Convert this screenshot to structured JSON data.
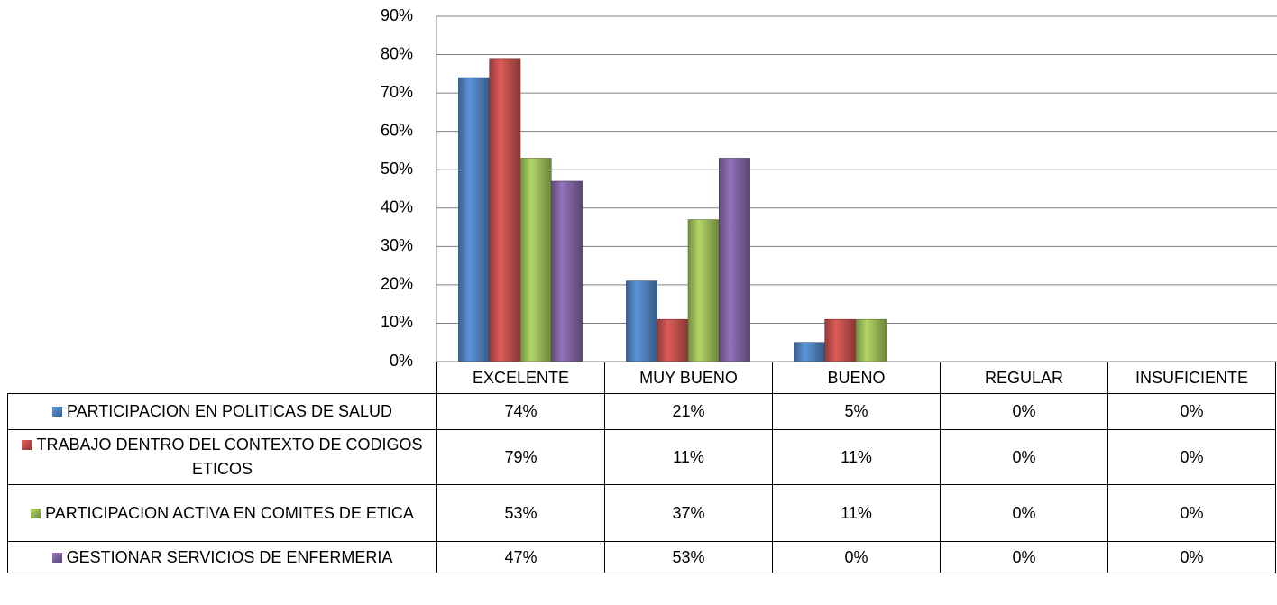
{
  "chart_data": {
    "type": "bar",
    "categories": [
      "EXCELENTE",
      "MUY BUENO",
      "BUENO",
      "REGULAR",
      "INSUFICIENTE"
    ],
    "series": [
      {
        "name": "PARTICIPACION EN POLITICAS DE SALUD",
        "color": "#4f81bd",
        "values": [
          74,
          21,
          5,
          0,
          0
        ],
        "value_labels": [
          "74%",
          "21%",
          "5%",
          "0%",
          "0%"
        ]
      },
      {
        "name": "TRABAJO DENTRO DEL CONTEXTO DE CODIGOS ETICOS",
        "color": "#c0504d",
        "values": [
          79,
          11,
          11,
          0,
          0
        ],
        "value_labels": [
          "79%",
          "11%",
          "11%",
          "0%",
          "0%"
        ]
      },
      {
        "name": "PARTICIPACION ACTIVA EN COMITES DE ETICA",
        "color": "#9bbb59",
        "values": [
          53,
          37,
          11,
          0,
          0
        ],
        "value_labels": [
          "53%",
          "37%",
          "11%",
          "0%",
          "0%"
        ]
      },
      {
        "name": "GESTIONAR SERVICIOS DE ENFERMERIA",
        "color": "#8064a2",
        "values": [
          47,
          53,
          0,
          0,
          0
        ],
        "value_labels": [
          "47%",
          "53%",
          "0%",
          "0%",
          "0%"
        ]
      }
    ],
    "ylim": [
      0,
      90
    ],
    "yticks": [
      {
        "value": 0,
        "label": "0%"
      },
      {
        "value": 10,
        "label": "10%"
      },
      {
        "value": 20,
        "label": "20%"
      },
      {
        "value": 30,
        "label": "30%"
      },
      {
        "value": 40,
        "label": "40%"
      },
      {
        "value": 50,
        "label": "50%"
      },
      {
        "value": 60,
        "label": "60%"
      },
      {
        "value": 70,
        "label": "70%"
      },
      {
        "value": 80,
        "label": "80%"
      },
      {
        "value": 90,
        "label": "90%"
      }
    ],
    "grid": true
  }
}
